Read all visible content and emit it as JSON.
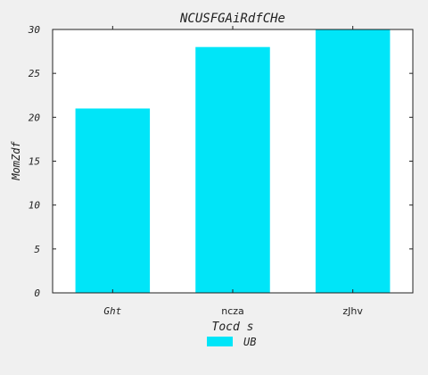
{
  "chart_data": {
    "type": "bar",
    "title": "NCUSFGAiRdfCHe",
    "xlabel": "Tocd s",
    "ylabel": "MomZdf",
    "categories": [
      "Ght",
      "ncza",
      "zJhv"
    ],
    "series": [
      {
        "name": "UB",
        "values": [
          21,
          28,
          30
        ],
        "color": "#00e5f8"
      }
    ],
    "ylim": [
      0,
      30
    ],
    "yticks": [
      0,
      5,
      10,
      15,
      20,
      25,
      30
    ],
    "legend_position": "bottom-center",
    "grid": false
  }
}
